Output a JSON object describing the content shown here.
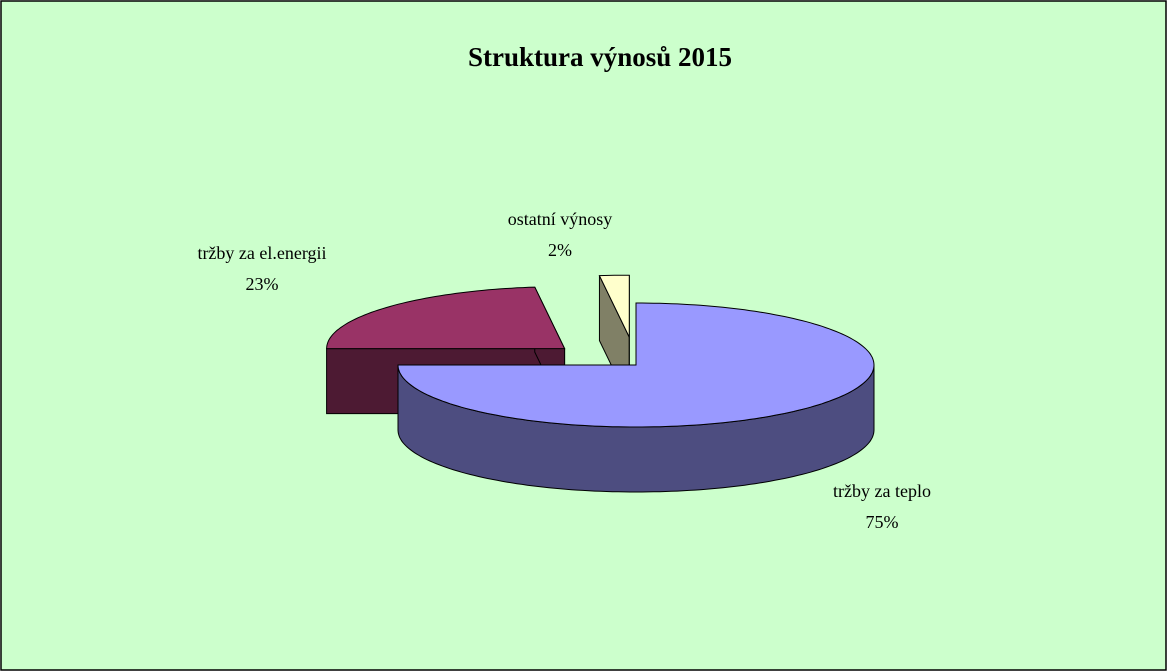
{
  "chart_data": {
    "type": "pie",
    "title": "Struktura výnosů 2015",
    "categories": [
      "tržby za teplo",
      "tržby za el.energii",
      "ostatní výnosy"
    ],
    "values": [
      75,
      23,
      2
    ],
    "value_labels": [
      "75%",
      "23%",
      "2%"
    ],
    "colors": [
      "#9999ff",
      "#993366",
      "#ffffcc"
    ]
  }
}
